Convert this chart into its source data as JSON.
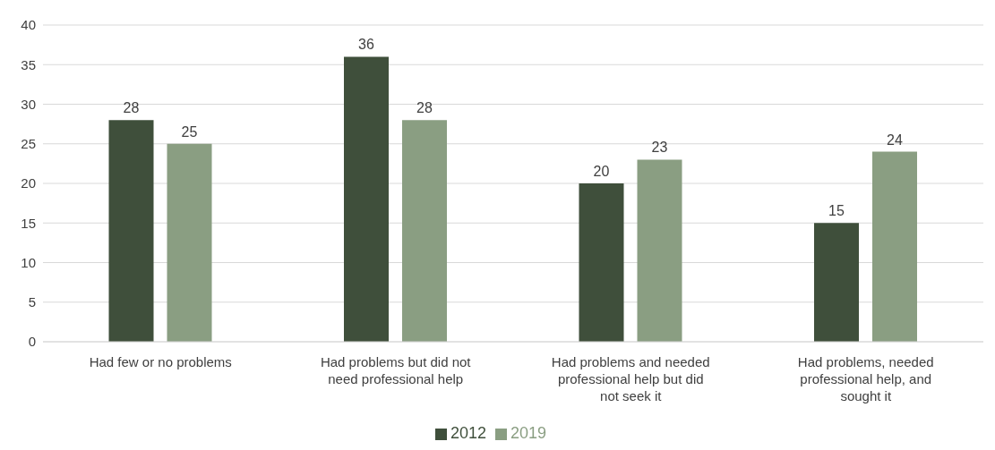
{
  "chart_data": {
    "type": "bar",
    "categories": [
      "Had few or no problems",
      "Had problems but did not need professional help",
      "Had problems and needed professional help but did not seek it",
      "Had problems, needed professional help, and sought it"
    ],
    "series": [
      {
        "name": "2012",
        "color": "#3f4f3b",
        "values": [
          28,
          36,
          20,
          15
        ]
      },
      {
        "name": "2019",
        "color": "#8a9e82",
        "values": [
          25,
          28,
          23,
          24
        ]
      }
    ],
    "ylim": [
      0,
      40
    ],
    "yticks": [
      0,
      5,
      10,
      15,
      20,
      25,
      30,
      35,
      40
    ],
    "grid": "y",
    "legend": "bottom",
    "data_labels": true
  }
}
